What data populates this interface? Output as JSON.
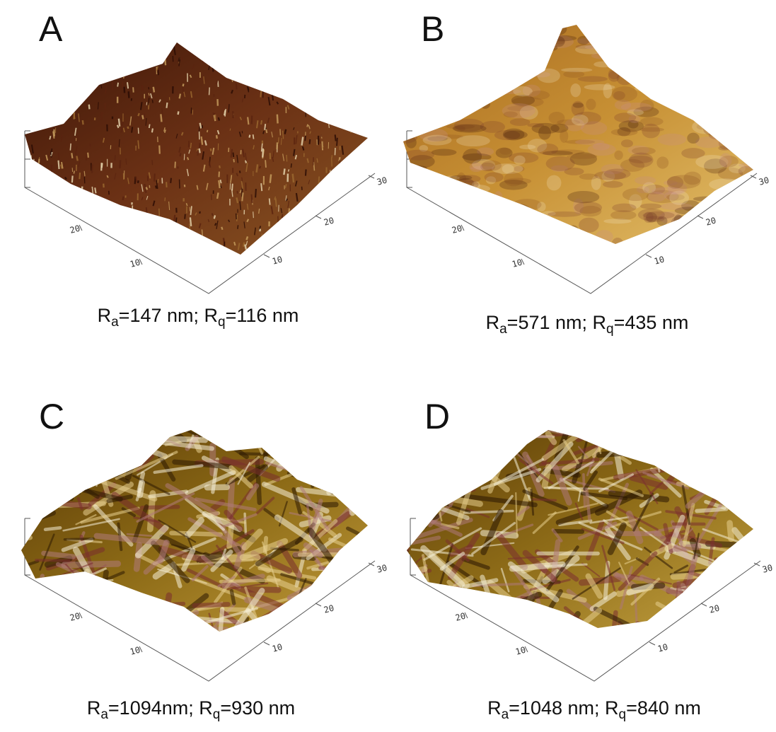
{
  "panels": [
    {
      "label": "A",
      "caption": {
        "r1": "R",
        "s1": "a",
        "v1": "=147 nm; ",
        "r2": "R",
        "s2": "q",
        "v2": "=116 nm"
      },
      "left_ticks": [
        "20",
        "10"
      ],
      "right_ticks": [
        "10",
        "20",
        "30"
      ]
    },
    {
      "label": "B",
      "caption": {
        "r1": "R",
        "s1": "a",
        "v1": "=571 nm; ",
        "r2": "R",
        "s2": "q",
        "v2": "=435 nm"
      },
      "left_ticks": [
        "20",
        "10"
      ],
      "right_ticks": [
        "10",
        "20",
        "30"
      ]
    },
    {
      "label": "C",
      "caption": {
        "r1": "R",
        "s1": "a",
        "v1": "=1094nm; ",
        "r2": "R",
        "s2": "q",
        "v2": "=930 nm"
      },
      "left_ticks": [
        "20",
        "10"
      ],
      "right_ticks": [
        "10",
        "20",
        "30"
      ]
    },
    {
      "label": "D",
      "caption": {
        "r1": "R",
        "s1": "a",
        "v1": "=1048 nm; ",
        "r2": "R",
        "s2": "q",
        "v2": "=840 nm"
      },
      "left_ticks": [
        "20",
        "10"
      ],
      "right_ticks": [
        "10",
        "20",
        "30"
      ]
    }
  ]
}
